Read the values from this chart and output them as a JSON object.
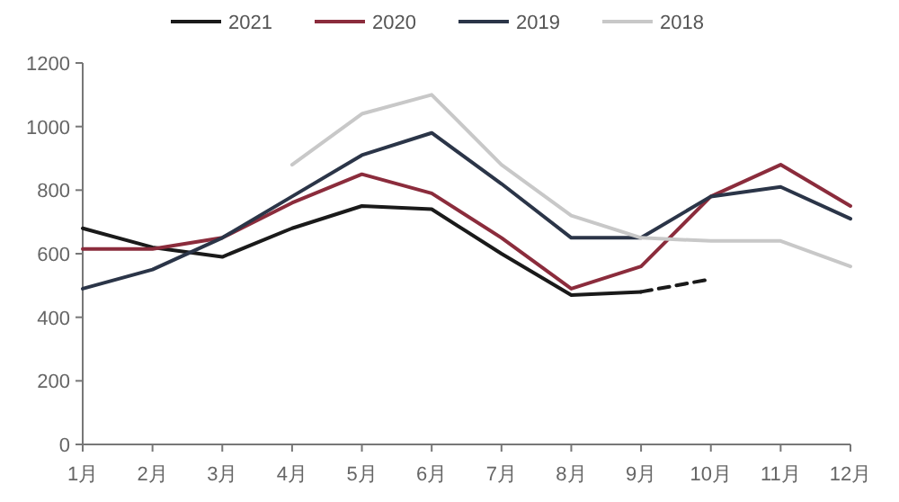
{
  "chart_data": {
    "type": "line",
    "categories": [
      "1月",
      "2月",
      "3月",
      "4月",
      "5月",
      "6月",
      "7月",
      "8月",
      "9月",
      "10月",
      "11月",
      "12月"
    ],
    "series": [
      {
        "name": "2021",
        "color": "#1a1a1a",
        "values": [
          680,
          620,
          590,
          680,
          750,
          740,
          600,
          470,
          480,
          null,
          null,
          null
        ]
      },
      {
        "color": "#1a1a1a",
        "line_style": "dashed",
        "values": [
          null,
          null,
          null,
          null,
          null,
          null,
          null,
          null,
          480,
          520,
          null,
          null
        ]
      },
      {
        "name": "2020",
        "color": "#8b2c3c",
        "values": [
          615,
          615,
          650,
          760,
          850,
          790,
          650,
          490,
          560,
          780,
          880,
          750
        ]
      },
      {
        "name": "2019",
        "color": "#2b3548",
        "values": [
          490,
          550,
          650,
          780,
          910,
          980,
          820,
          650,
          650,
          780,
          810,
          710
        ]
      },
      {
        "name": "2018",
        "color": "#c8c8c8",
        "values": [
          null,
          null,
          null,
          880,
          1040,
          1100,
          880,
          720,
          650,
          640,
          640,
          560
        ]
      }
    ],
    "ylim": [
      0,
      1200
    ],
    "yticks": [
      0,
      200,
      400,
      600,
      800,
      1000,
      1200
    ],
    "legend": "top",
    "grid": false,
    "marker": "none",
    "line_style": "solid"
  }
}
